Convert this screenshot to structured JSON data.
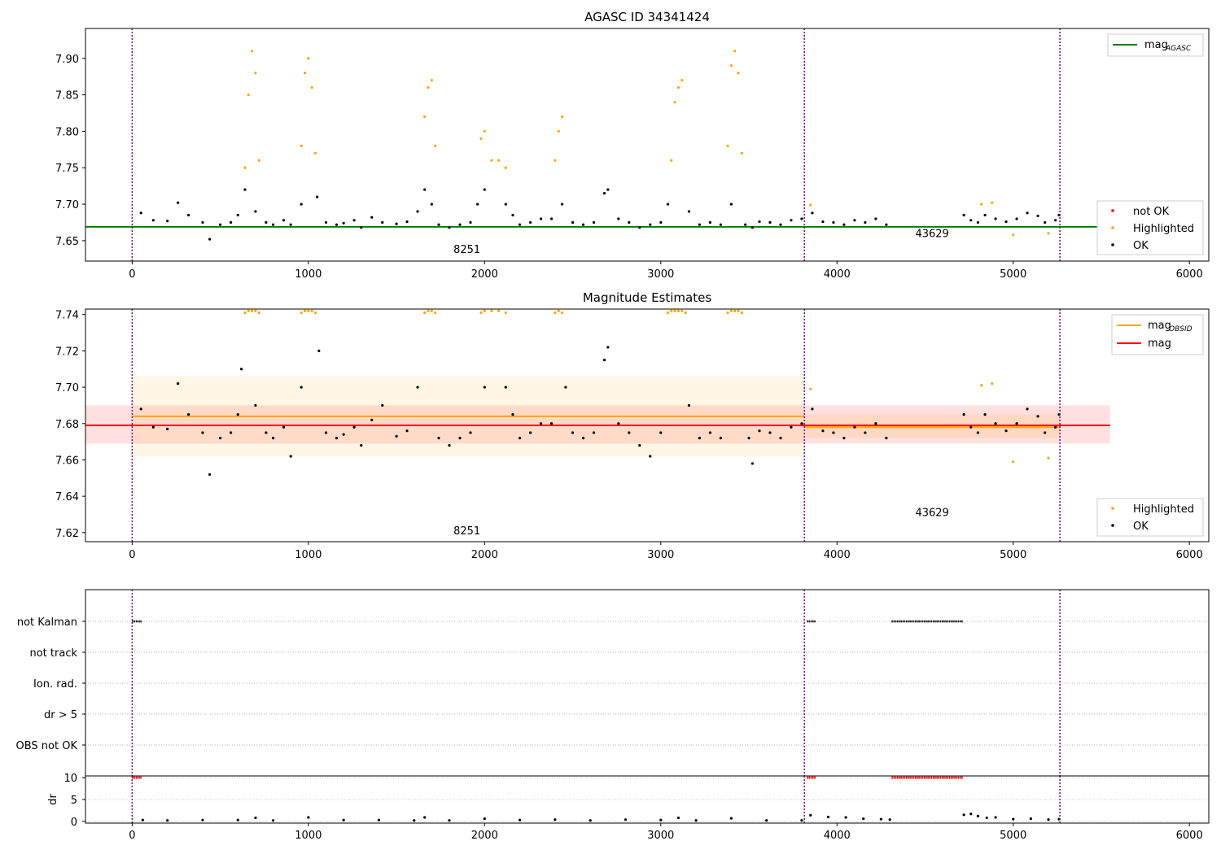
{
  "chart_data": [
    {
      "id": "top",
      "type": "scatter",
      "title": "AGASC ID 34341424",
      "xlim": [
        -265,
        6110
      ],
      "ylim": [
        7.622,
        7.941
      ],
      "x_ticks": [
        0,
        1000,
        2000,
        3000,
        4000,
        5000,
        6000
      ],
      "y_ticks": [
        7.65,
        7.7,
        7.75,
        7.8,
        7.85,
        7.9
      ],
      "obs_boundaries": [
        0,
        3815,
        5265
      ],
      "obs_labels": [
        {
          "text": "8251",
          "x": 1900,
          "y": 7.633
        },
        {
          "text": "43629",
          "x": 4540,
          "y": 7.655
        }
      ],
      "lines": [
        {
          "name": "mag_AGASC",
          "y": 7.669,
          "x_range": [
            -265,
            5550
          ],
          "color": "#008000"
        }
      ],
      "legend_lines": [
        {
          "label": "mag",
          "sub": "AGASC",
          "color": "#008000"
        }
      ],
      "legend_points": [
        {
          "label": "not OK",
          "color": "#ff0000"
        },
        {
          "label": "Highlighted",
          "color": "#ffa500"
        },
        {
          "label": "OK",
          "color": "#000000"
        }
      ],
      "series": [
        {
          "name": "OK",
          "color": "#000000",
          "x": [
            50,
            120,
            200,
            260,
            320,
            400,
            440,
            500,
            560,
            600,
            640,
            700,
            760,
            800,
            860,
            900,
            960,
            1050,
            1100,
            1160,
            1200,
            1260,
            1300,
            1360,
            1420,
            1500,
            1560,
            1620,
            1660,
            1700,
            1740,
            1800,
            1860,
            1920,
            1960,
            2000,
            2120,
            2160,
            2200,
            2260,
            2320,
            2380,
            2440,
            2500,
            2560,
            2620,
            2680,
            2700,
            2760,
            2820,
            2880,
            2940,
            3000,
            3040,
            3160,
            3220,
            3280,
            3340,
            3400,
            3480,
            3520,
            3560,
            3620,
            3680,
            3740,
            3800,
            3860,
            3920,
            3980,
            4040,
            4100,
            4160,
            4220,
            4280,
            4720,
            4760,
            4800,
            4840,
            4900,
            4960,
            5020,
            5080,
            5140,
            5180,
            5240,
            5260
          ],
          "y": [
            7.688,
            7.678,
            7.677,
            7.702,
            7.685,
            7.675,
            7.652,
            7.672,
            7.675,
            7.685,
            7.72,
            7.69,
            7.675,
            7.672,
            7.678,
            7.672,
            7.7,
            7.71,
            7.675,
            7.672,
            7.674,
            7.678,
            7.668,
            7.682,
            7.675,
            7.673,
            7.676,
            7.69,
            7.72,
            7.7,
            7.672,
            7.668,
            7.672,
            7.675,
            7.7,
            7.72,
            7.7,
            7.685,
            7.672,
            7.675,
            7.68,
            7.68,
            7.7,
            7.675,
            7.672,
            7.675,
            7.715,
            7.72,
            7.68,
            7.675,
            7.668,
            7.672,
            7.675,
            7.7,
            7.69,
            7.672,
            7.675,
            7.672,
            7.7,
            7.672,
            7.668,
            7.676,
            7.675,
            7.672,
            7.678,
            7.68,
            7.688,
            7.676,
            7.675,
            7.672,
            7.678,
            7.675,
            7.68,
            7.672,
            7.685,
            7.678,
            7.675,
            7.685,
            7.68,
            7.676,
            7.68,
            7.688,
            7.684,
            7.675,
            7.678,
            7.685
          ]
        },
        {
          "name": "Highlighted",
          "color": "#ffa500",
          "x": [
            640,
            660,
            680,
            700,
            720,
            960,
            980,
            1000,
            1020,
            1040,
            1660,
            1680,
            1700,
            1720,
            1980,
            2000,
            2040,
            2080,
            2120,
            2400,
            2420,
            2440,
            3060,
            3080,
            3100,
            3120,
            3380,
            3400,
            3420,
            3440,
            3460,
            3850,
            4820,
            4880,
            5000,
            5200
          ],
          "y": [
            7.75,
            7.85,
            7.91,
            7.88,
            7.76,
            7.78,
            7.88,
            7.9,
            7.86,
            7.77,
            7.82,
            7.86,
            7.87,
            7.78,
            7.79,
            7.8,
            7.76,
            7.76,
            7.75,
            7.76,
            7.8,
            7.82,
            7.76,
            7.84,
            7.86,
            7.87,
            7.78,
            7.89,
            7.91,
            7.88,
            7.77,
            7.699,
            7.7,
            7.702,
            7.658,
            7.66
          ]
        },
        {
          "name": "not OK",
          "color": "#ff0000",
          "x": [],
          "y": []
        }
      ]
    },
    {
      "id": "middle",
      "type": "scatter",
      "title": "Magnitude Estimates",
      "xlim": [
        -265,
        6110
      ],
      "ylim": [
        7.615,
        7.743
      ],
      "x_ticks": [
        0,
        1000,
        2000,
        3000,
        4000,
        5000,
        6000
      ],
      "y_ticks": [
        7.62,
        7.64,
        7.66,
        7.68,
        7.7,
        7.72,
        7.74
      ],
      "obs_boundaries": [
        0,
        3815,
        5265
      ],
      "obs_labels": [
        {
          "text": "8251",
          "x": 1900,
          "y": 7.619
        },
        {
          "text": "43629",
          "x": 4540,
          "y": 7.629
        }
      ],
      "bands": [
        {
          "x_range": [
            -265,
            5550
          ],
          "y_range": [
            7.669,
            7.69
          ],
          "color": "#ff0000",
          "opacity": 0.12
        },
        {
          "x_range": [
            0,
            3815
          ],
          "y_range": [
            7.662,
            7.706
          ],
          "color": "#ffa500",
          "opacity": 0.1
        },
        {
          "x_range": [
            3815,
            5265
          ],
          "y_range": [
            7.672,
            7.685
          ],
          "color": "#ffa500",
          "opacity": 0.12
        }
      ],
      "lines": [
        {
          "name": "mag_OBSID 8251",
          "y": 7.684,
          "x_range": [
            0,
            3815
          ],
          "color": "#ffa500"
        },
        {
          "name": "mag_OBSID 43629",
          "y": 7.678,
          "x_range": [
            3815,
            5265
          ],
          "color": "#ffa500"
        },
        {
          "name": "mag",
          "y": 7.679,
          "x_range": [
            -265,
            5550
          ],
          "color": "#ff0000"
        }
      ],
      "legend_lines": [
        {
          "label": "mag",
          "sub": "OBSID",
          "color": "#ffa500"
        },
        {
          "label": "mag",
          "sub": "",
          "color": "#ff0000"
        }
      ],
      "legend_points": [
        {
          "label": "Highlighted",
          "color": "#ffa500"
        },
        {
          "label": "OK",
          "color": "#000000"
        }
      ],
      "series": [
        {
          "name": "OK",
          "color": "#000000",
          "x": [
            50,
            120,
            200,
            260,
            320,
            400,
            440,
            500,
            560,
            600,
            620,
            700,
            760,
            800,
            860,
            900,
            960,
            1060,
            1100,
            1160,
            1200,
            1260,
            1300,
            1360,
            1420,
            1500,
            1560,
            1620,
            1740,
            1800,
            1860,
            1920,
            2000,
            2120,
            2160,
            2200,
            2260,
            2320,
            2380,
            2460,
            2500,
            2560,
            2620,
            2680,
            2700,
            2760,
            2820,
            2880,
            2940,
            3000,
            3160,
            3220,
            3280,
            3340,
            3500,
            3520,
            3560,
            3620,
            3680,
            3740,
            3800,
            3860,
            3920,
            3980,
            4040,
            4100,
            4160,
            4220,
            4280,
            4720,
            4760,
            4800,
            4840,
            4900,
            4960,
            5020,
            5080,
            5140,
            5180,
            5240,
            5260
          ],
          "y": [
            7.688,
            7.678,
            7.677,
            7.702,
            7.685,
            7.675,
            7.652,
            7.672,
            7.675,
            7.685,
            7.71,
            7.69,
            7.675,
            7.672,
            7.678,
            7.662,
            7.7,
            7.72,
            7.675,
            7.672,
            7.674,
            7.678,
            7.668,
            7.682,
            7.69,
            7.673,
            7.676,
            7.7,
            7.672,
            7.668,
            7.672,
            7.675,
            7.7,
            7.7,
            7.685,
            7.672,
            7.675,
            7.68,
            7.68,
            7.7,
            7.675,
            7.672,
            7.675,
            7.715,
            7.722,
            7.68,
            7.675,
            7.668,
            7.662,
            7.675,
            7.69,
            7.672,
            7.675,
            7.672,
            7.672,
            7.658,
            7.676,
            7.675,
            7.672,
            7.678,
            7.68,
            7.688,
            7.676,
            7.675,
            7.672,
            7.678,
            7.675,
            7.68,
            7.672,
            7.685,
            7.678,
            7.675,
            7.685,
            7.68,
            7.676,
            7.68,
            7.688,
            7.684,
            7.675,
            7.678,
            7.685
          ]
        },
        {
          "name": "Highlighted",
          "color": "#ffa500",
          "x": [
            640,
            660,
            680,
            700,
            720,
            960,
            980,
            1000,
            1020,
            1040,
            1660,
            1680,
            1700,
            1720,
            1980,
            2000,
            2040,
            2080,
            2120,
            2400,
            2420,
            2440,
            3040,
            3060,
            3080,
            3100,
            3120,
            3140,
            3380,
            3400,
            3420,
            3440,
            3460,
            3850,
            4820,
            4880,
            5000,
            5200
          ],
          "y": [
            7.741,
            7.742,
            7.742,
            7.742,
            7.741,
            7.741,
            7.742,
            7.742,
            7.742,
            7.741,
            7.741,
            7.742,
            7.742,
            7.741,
            7.741,
            7.742,
            7.742,
            7.742,
            7.741,
            7.741,
            7.742,
            7.741,
            7.741,
            7.742,
            7.742,
            7.742,
            7.742,
            7.741,
            7.741,
            7.742,
            7.742,
            7.742,
            7.741,
            7.699,
            7.701,
            7.702,
            7.659,
            7.661
          ]
        }
      ]
    },
    {
      "id": "flags",
      "type": "scatter",
      "title": "",
      "xlim": [
        -265,
        6110
      ],
      "categories": [
        "not Kalman",
        "not track",
        "Ion. rad.",
        "dr > 5",
        "OBS not OK"
      ],
      "obs_boundaries": [
        0,
        3815,
        5265
      ],
      "flag_segments": [
        {
          "category": "not Kalman",
          "x_range": [
            0,
            55
          ]
        },
        {
          "category": "not Kalman",
          "x_range": [
            3830,
            3880
          ]
        },
        {
          "category": "not Kalman",
          "x_range": [
            4310,
            4715
          ]
        }
      ]
    },
    {
      "id": "dr",
      "type": "scatter",
      "title": "",
      "ylabel": "dr",
      "xlim": [
        -265,
        6110
      ],
      "ylim": [
        -0.4,
        10.4
      ],
      "x_ticks": [
        0,
        1000,
        2000,
        3000,
        4000,
        5000,
        6000
      ],
      "x_tick_labels": [
        "0",
        "1000",
        "2000",
        "3000",
        "4000",
        "5000",
        "6000"
      ],
      "y_ticks": [
        0,
        5,
        10
      ],
      "obs_boundaries": [
        0,
        3815,
        5265
      ],
      "clipped_segments": [
        {
          "value": 10,
          "x_range": [
            0,
            55
          ],
          "color": "#ff0000"
        },
        {
          "value": 10,
          "x_range": [
            3830,
            3880
          ],
          "color": "#ff0000"
        },
        {
          "value": 10,
          "x_range": [
            4310,
            4715
          ],
          "color": "#ff0000"
        }
      ],
      "series": [
        {
          "name": "dr",
          "color": "#000000",
          "x": [
            60,
            200,
            400,
            600,
            700,
            800,
            1000,
            1200,
            1400,
            1600,
            1660,
            1800,
            2000,
            2200,
            2400,
            2600,
            2800,
            3000,
            3100,
            3200,
            3400,
            3600,
            3800,
            3850,
            3950,
            4050,
            4150,
            4250,
            4300,
            4720,
            4760,
            4800,
            4850,
            4900,
            5000,
            5100,
            5200,
            5260
          ],
          "y": [
            0.3,
            0.2,
            0.3,
            0.3,
            0.8,
            0.2,
            0.9,
            0.3,
            0.3,
            0.2,
            0.9,
            0.2,
            0.6,
            0.3,
            0.4,
            0.2,
            0.4,
            0.3,
            0.8,
            0.2,
            0.7,
            0.2,
            0.2,
            1.4,
            1.0,
            0.9,
            0.6,
            0.5,
            0.4,
            1.5,
            1.7,
            1.2,
            0.8,
            0.9,
            0.5,
            0.6,
            0.4,
            0.5
          ]
        }
      ]
    }
  ]
}
